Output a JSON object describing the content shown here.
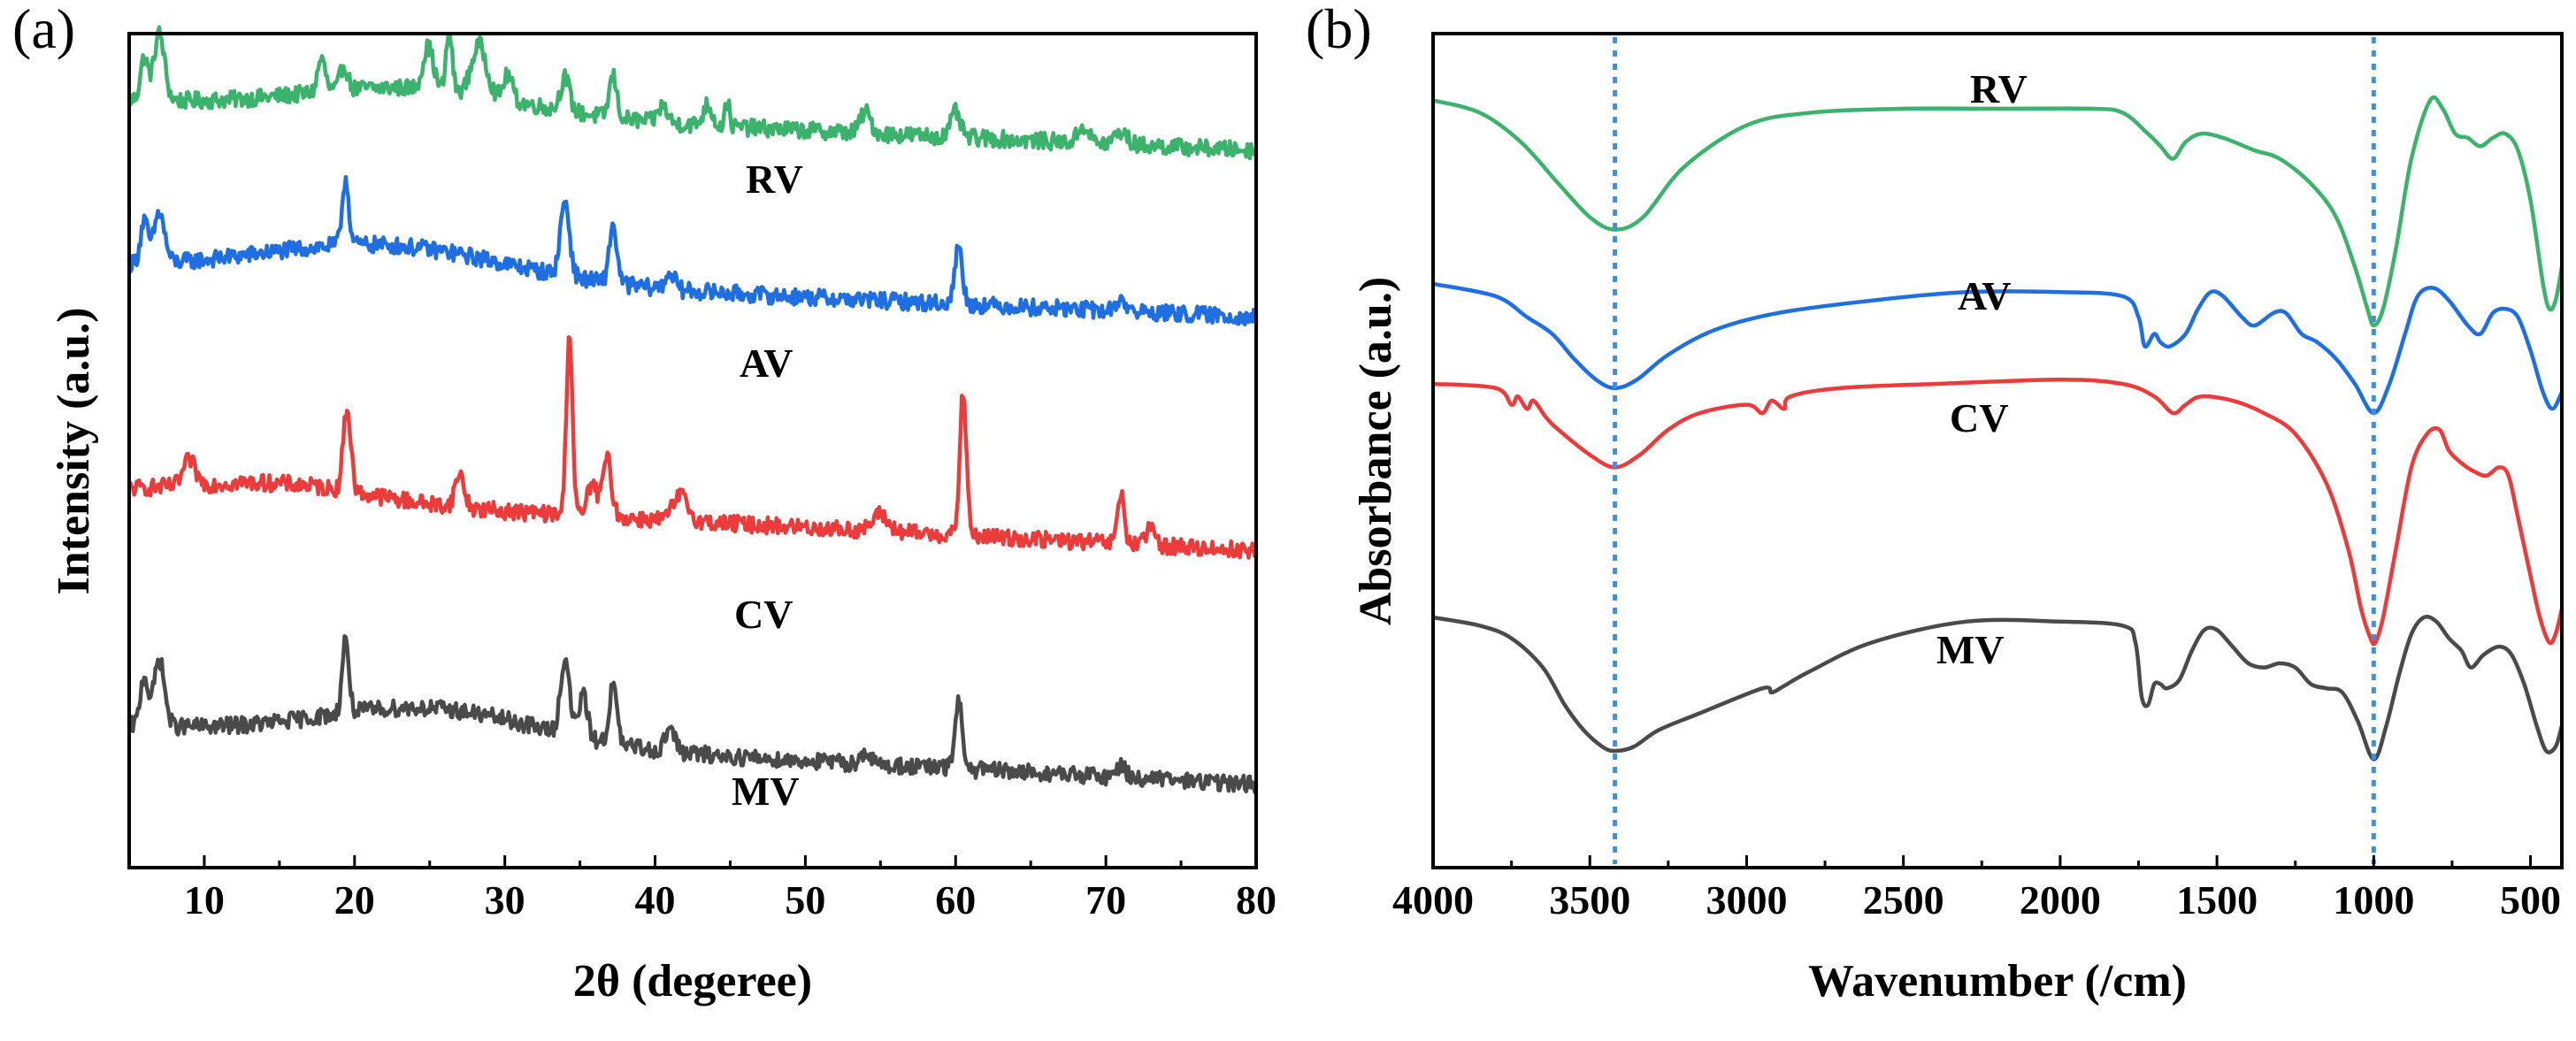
{
  "colors": {
    "RV": "#3cb36c",
    "AV": "#1f6fe3",
    "CV": "#ec3b3b",
    "MV": "#4a4a4a",
    "reference_line": "#3d8fe8",
    "axis": "#000000"
  },
  "chart_data": [
    {
      "type": "line",
      "panel_label": "(a)",
      "title": "",
      "xlabel": "2θ (degeree)",
      "ylabel": "Intensity (a.u.)",
      "xlim": [
        5,
        80
      ],
      "ylim": [
        0,
        100
      ],
      "xticks": [
        10,
        20,
        30,
        40,
        50,
        60,
        70,
        80
      ],
      "grid": false,
      "offset_stacked": true,
      "baselines": {
        "RV": 88,
        "AV": 68,
        "CV": 38,
        "MV": 12
      },
      "series": [
        {
          "name": "RV",
          "label": "RV",
          "color": "#3cb36c",
          "start": 92,
          "end": 86,
          "peaks": [
            [
              6,
              5,
              0.25
            ],
            [
              7,
              8,
              0.35
            ],
            [
              17.8,
              4,
              0.25
            ],
            [
              19.3,
              3,
              0.25
            ],
            [
              24.9,
              5,
              0.35
            ],
            [
              26.3,
              7,
              0.2
            ],
            [
              28.3,
              6,
              0.5
            ],
            [
              30.2,
              3,
              0.3
            ],
            [
              34,
              4,
              0.3
            ],
            [
              37.2,
              5,
              0.25
            ],
            [
              40.5,
              2,
              0.3
            ],
            [
              43.5,
              2.5,
              0.3
            ],
            [
              44.8,
              3,
              0.15
            ],
            [
              54,
              2.5,
              0.35
            ],
            [
              60,
              3,
              0.3
            ],
            [
              68.5,
              2,
              0.35
            ],
            [
              71,
              1.5,
              0.4
            ]
          ],
          "humps": [
            [
              24,
              3,
              7
            ]
          ]
        },
        {
          "name": "AV",
          "label": "AV",
          "color": "#1f6fe3",
          "start": 72,
          "end": 66,
          "peaks": [
            [
              6,
              5,
              0.25
            ],
            [
              7,
              6,
              0.35
            ],
            [
              19.4,
              8,
              0.22
            ],
            [
              34,
              9,
              0.3
            ],
            [
              37.2,
              7,
              0.25
            ],
            [
              41,
              2,
              0.3
            ],
            [
              60.2,
              7,
              0.25
            ],
            [
              71,
              1.5,
              0.3
            ]
          ],
          "humps": [
            [
              22,
              4,
              8
            ]
          ]
        },
        {
          "name": "CV",
          "label": "CV",
          "color": "#ec3b3b",
          "start": 45,
          "end": 38,
          "peaks": [
            [
              9,
              3,
              0.4
            ],
            [
              19.5,
              10,
              0.25
            ],
            [
              27,
              4,
              0.3
            ],
            [
              34.3,
              22,
              0.2
            ],
            [
              35.8,
              4,
              0.3
            ],
            [
              36.8,
              7,
              0.3
            ],
            [
              41.7,
              3,
              0.5
            ],
            [
              55,
              2,
              0.5
            ],
            [
              60.5,
              17,
              0.22
            ],
            [
              71,
              6,
              0.22
            ],
            [
              73,
              2,
              0.3
            ]
          ],
          "humps": [
            [
              15,
              2,
              6
            ]
          ]
        },
        {
          "name": "MV",
          "label": "MV",
          "color": "#4a4a4a",
          "start": 17,
          "end": 10,
          "peaks": [
            [
              6,
              6,
              0.25
            ],
            [
              7,
              8,
              0.35
            ],
            [
              19.4,
              9,
              0.22
            ],
            [
              34,
              9,
              0.3
            ],
            [
              35.2,
              5,
              0.3
            ],
            [
              37.2,
              7,
              0.25
            ],
            [
              41,
              3,
              0.3
            ],
            [
              54,
              1.5,
              0.3
            ],
            [
              60.2,
              8,
              0.25
            ],
            [
              71,
              1.5,
              0.3
            ]
          ],
          "humps": [
            [
              25,
              4,
              7
            ]
          ]
        }
      ]
    },
    {
      "type": "line",
      "panel_label": "(b)",
      "title": "",
      "xlabel": "Wavenumber (/cm)",
      "ylabel": "Absorbance (a.u.)",
      "xlim": [
        4000,
        400
      ],
      "ylim": [
        0,
        100
      ],
      "xticks": [
        4000,
        3500,
        3000,
        2500,
        2000,
        1500,
        1000,
        500
      ],
      "grid": false,
      "offset_stacked": true,
      "reference_lines_x": [
        3420,
        1000
      ],
      "series": [
        {
          "name": "RV",
          "label": "RV",
          "color": "#3cb36c",
          "points": [
            [
              4000,
              92
            ],
            [
              3850,
              90.5
            ],
            [
              3720,
              87
            ],
            [
              3600,
              82
            ],
            [
              3500,
              78
            ],
            [
              3420,
              76.5
            ],
            [
              3330,
              78
            ],
            [
              3200,
              84
            ],
            [
              3000,
              89
            ],
            [
              2800,
              90.5
            ],
            [
              2500,
              91
            ],
            [
              2200,
              91
            ],
            [
              1900,
              91
            ],
            [
              1800,
              90.5
            ],
            [
              1720,
              88
            ],
            [
              1680,
              86.5
            ],
            [
              1640,
              85
            ],
            [
              1600,
              87
            ],
            [
              1550,
              88
            ],
            [
              1480,
              87.5
            ],
            [
              1380,
              86
            ],
            [
              1300,
              85
            ],
            [
              1200,
              82
            ],
            [
              1120,
              78
            ],
            [
              1060,
              72
            ],
            [
              1020,
              67
            ],
            [
              1000,
              65
            ],
            [
              970,
              67
            ],
            [
              930,
              74
            ],
            [
              880,
              85
            ],
            [
              820,
              92
            ],
            [
              780,
              91
            ],
            [
              740,
              88
            ],
            [
              700,
              87.5
            ],
            [
              660,
              86.5
            ],
            [
              620,
              87.5
            ],
            [
              580,
              88
            ],
            [
              540,
              86
            ],
            [
              500,
              80
            ],
            [
              460,
              70
            ],
            [
              440,
              67
            ],
            [
              420,
              68
            ],
            [
              400,
              72
            ]
          ]
        },
        {
          "name": "AV",
          "label": "AV",
          "color": "#1f6fe3",
          "points": [
            [
              4000,
              70
            ],
            [
              3800,
              68.5
            ],
            [
              3700,
              66
            ],
            [
              3620,
              64
            ],
            [
              3550,
              61
            ],
            [
              3480,
              58.5
            ],
            [
              3420,
              57.5
            ],
            [
              3350,
              58.5
            ],
            [
              3250,
              61.5
            ],
            [
              3100,
              64.5
            ],
            [
              2900,
              66.5
            ],
            [
              2600,
              68
            ],
            [
              2300,
              69
            ],
            [
              2000,
              69
            ],
            [
              1800,
              68.5
            ],
            [
              1750,
              66
            ],
            [
              1730,
              62.5
            ],
            [
              1700,
              64
            ],
            [
              1680,
              63
            ],
            [
              1650,
              62.5
            ],
            [
              1600,
              64
            ],
            [
              1560,
              67
            ],
            [
              1520,
              69
            ],
            [
              1480,
              68.5
            ],
            [
              1420,
              66
            ],
            [
              1380,
              65
            ],
            [
              1320,
              66.5
            ],
            [
              1280,
              66.5
            ],
            [
              1230,
              64
            ],
            [
              1180,
              63
            ],
            [
              1120,
              61
            ],
            [
              1060,
              58
            ],
            [
              1000,
              54.5
            ],
            [
              950,
              58
            ],
            [
              900,
              64
            ],
            [
              860,
              68.5
            ],
            [
              810,
              69.5
            ],
            [
              760,
              68
            ],
            [
              700,
              65
            ],
            [
              660,
              64
            ],
            [
              620,
              66.5
            ],
            [
              580,
              67
            ],
            [
              540,
              66
            ],
            [
              500,
              62
            ],
            [
              460,
              57
            ],
            [
              430,
              55
            ],
            [
              400,
              57
            ]
          ]
        },
        {
          "name": "CV",
          "label": "CV",
          "color": "#ec3b3b",
          "points": [
            [
              4000,
              58
            ],
            [
              3800,
              57.5
            ],
            [
              3750,
              55.5
            ],
            [
              3730,
              56.5
            ],
            [
              3700,
              55
            ],
            [
              3680,
              56
            ],
            [
              3640,
              54
            ],
            [
              3600,
              52.5
            ],
            [
              3500,
              49.5
            ],
            [
              3420,
              48
            ],
            [
              3340,
              49.5
            ],
            [
              3250,
              52.5
            ],
            [
              3150,
              54.5
            ],
            [
              3000,
              55.5
            ],
            [
              2950,
              54.5
            ],
            [
              2920,
              56
            ],
            [
              2880,
              55
            ],
            [
              2860,
              56.5
            ],
            [
              2700,
              57.5
            ],
            [
              2400,
              58
            ],
            [
              2000,
              58.5
            ],
            [
              1800,
              58
            ],
            [
              1700,
              56.5
            ],
            [
              1640,
              54.5
            ],
            [
              1600,
              55.5
            ],
            [
              1550,
              56.5
            ],
            [
              1450,
              56
            ],
            [
              1350,
              54.5
            ],
            [
              1250,
              52
            ],
            [
              1150,
              46
            ],
            [
              1080,
              38
            ],
            [
              1040,
              31
            ],
            [
              1010,
              27.5
            ],
            [
              995,
              27
            ],
            [
              970,
              30
            ],
            [
              930,
              38
            ],
            [
              880,
              48
            ],
            [
              830,
              52
            ],
            [
              790,
              52.5
            ],
            [
              760,
              50
            ],
            [
              720,
              48.5
            ],
            [
              680,
              47.5
            ],
            [
              640,
              47
            ],
            [
              600,
              48
            ],
            [
              570,
              47
            ],
            [
              540,
              42
            ],
            [
              500,
              35
            ],
            [
              470,
              30
            ],
            [
              440,
              27
            ],
            [
              420,
              28
            ],
            [
              400,
              31
            ]
          ]
        },
        {
          "name": "MV",
          "label": "MV",
          "color": "#4a4a4a",
          "points": [
            [
              4000,
              30
            ],
            [
              3850,
              29
            ],
            [
              3750,
              27.5
            ],
            [
              3650,
              24
            ],
            [
              3580,
              19.5
            ],
            [
              3520,
              16.5
            ],
            [
              3460,
              14.5
            ],
            [
              3420,
              14
            ],
            [
              3360,
              14.5
            ],
            [
              3280,
              16.5
            ],
            [
              3150,
              18.5
            ],
            [
              2950,
              21.5
            ],
            [
              2920,
              21
            ],
            [
              2880,
              21.8
            ],
            [
              2800,
              23.5
            ],
            [
              2600,
              27
            ],
            [
              2300,
              29.5
            ],
            [
              2000,
              29.5
            ],
            [
              1800,
              29
            ],
            [
              1760,
              27
            ],
            [
              1740,
              20.5
            ],
            [
              1720,
              19.5
            ],
            [
              1700,
              22
            ],
            [
              1680,
              22
            ],
            [
              1660,
              21.5
            ],
            [
              1620,
              22.5
            ],
            [
              1580,
              26
            ],
            [
              1540,
              28.5
            ],
            [
              1500,
              28.5
            ],
            [
              1450,
              26.5
            ],
            [
              1400,
              24.5
            ],
            [
              1350,
              24
            ],
            [
              1300,
              24.5
            ],
            [
              1250,
              24
            ],
            [
              1200,
              22
            ],
            [
              1150,
              21.5
            ],
            [
              1100,
              21
            ],
            [
              1050,
              17.5
            ],
            [
              1000,
              13
            ],
            [
              960,
              17
            ],
            [
              920,
              23
            ],
            [
              880,
              28
            ],
            [
              840,
              30
            ],
            [
              800,
              29.5
            ],
            [
              760,
              27.5
            ],
            [
              720,
              26
            ],
            [
              690,
              24
            ],
            [
              650,
              25.5
            ],
            [
              600,
              26.5
            ],
            [
              560,
              25.5
            ],
            [
              520,
              22
            ],
            [
              480,
              17
            ],
            [
              450,
              14
            ],
            [
              420,
              14.5
            ],
            [
              400,
              17
            ]
          ]
        }
      ]
    }
  ]
}
